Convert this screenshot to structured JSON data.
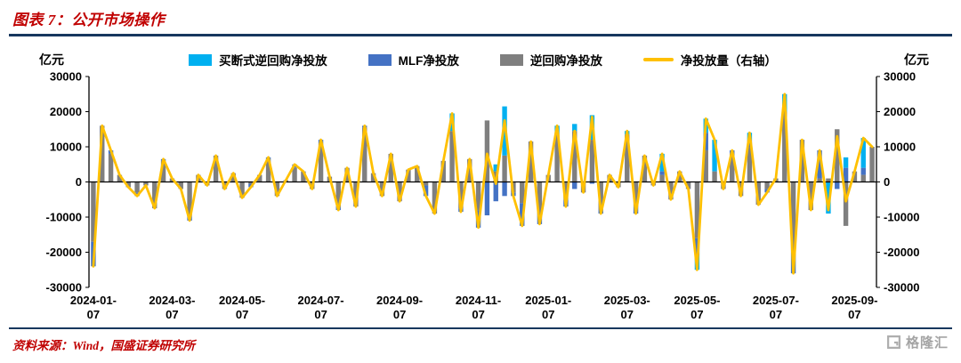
{
  "header": {
    "figure_title": "图表 7：公开市场操作"
  },
  "footer": {
    "source": "资料来源：Wind，国盛证券研究所",
    "watermark": "格隆汇"
  },
  "chart_data": {
    "type": "combo-bar-line",
    "title": "",
    "unit_left": "亿元",
    "unit_right": "亿元",
    "ylim": [
      -30000,
      30000
    ],
    "ylim_right": [
      -30000,
      30000
    ],
    "y_ticks": [
      30000,
      20000,
      10000,
      0,
      -10000,
      -20000,
      -30000
    ],
    "grid": false,
    "legend_position": "top",
    "x_tick_labels": [
      "2024-01-07",
      "2024-03-07",
      "2024-05-07",
      "2024-07-07",
      "2024-09-07",
      "2024-11-07",
      "2025-01-07",
      "2025-03-07",
      "2025-05-07",
      "2025-07-07",
      "2025-09-07"
    ],
    "x_tick_indices": [
      0,
      9,
      17,
      26,
      35,
      44,
      52,
      61,
      69,
      78,
      87
    ],
    "dates": [
      "2024-01-07",
      "2024-01-14",
      "2024-01-21",
      "2024-01-28",
      "2024-02-04",
      "2024-02-11",
      "2024-02-18",
      "2024-02-25",
      "2024-03-03",
      "2024-03-10",
      "2024-03-17",
      "2024-03-24",
      "2024-03-31",
      "2024-04-07",
      "2024-04-14",
      "2024-04-21",
      "2024-04-28",
      "2024-05-05",
      "2024-05-12",
      "2024-05-19",
      "2024-05-26",
      "2024-06-02",
      "2024-06-09",
      "2024-06-16",
      "2024-06-23",
      "2024-06-30",
      "2024-07-07",
      "2024-07-14",
      "2024-07-21",
      "2024-07-28",
      "2024-08-04",
      "2024-08-11",
      "2024-08-18",
      "2024-08-25",
      "2024-09-01",
      "2024-09-08",
      "2024-09-15",
      "2024-09-22",
      "2024-09-29",
      "2024-10-06",
      "2024-10-13",
      "2024-10-20",
      "2024-10-27",
      "2024-11-03",
      "2024-11-10",
      "2024-11-17",
      "2024-11-24",
      "2024-12-01",
      "2024-12-08",
      "2024-12-15",
      "2024-12-22",
      "2024-12-29",
      "2025-01-05",
      "2025-01-12",
      "2025-01-19",
      "2025-01-26",
      "2025-02-02",
      "2025-02-09",
      "2025-02-16",
      "2025-02-23",
      "2025-03-02",
      "2025-03-09",
      "2025-03-16",
      "2025-03-23",
      "2025-03-30",
      "2025-04-06",
      "2025-04-13",
      "2025-04-20",
      "2025-04-27",
      "2025-05-04",
      "2025-05-11",
      "2025-05-18",
      "2025-05-25",
      "2025-06-01",
      "2025-06-08",
      "2025-06-15",
      "2025-06-22",
      "2025-06-29",
      "2025-07-06",
      "2025-07-13",
      "2025-07-20",
      "2025-07-27",
      "2025-08-03",
      "2025-08-10",
      "2025-08-17",
      "2025-08-24",
      "2025-08-31",
      "2025-09-07",
      "2025-09-14",
      "2025-09-21"
    ],
    "series": [
      {
        "name": "买断式逆回购净投放",
        "type": "bar",
        "color": "#00b0f0",
        "values": [
          0,
          0,
          0,
          0,
          0,
          0,
          0,
          0,
          0,
          0,
          0,
          0,
          0,
          0,
          0,
          0,
          0,
          0,
          0,
          0,
          0,
          0,
          0,
          0,
          0,
          0,
          0,
          0,
          0,
          0,
          0,
          0,
          0,
          0,
          0,
          0,
          0,
          0,
          0,
          0,
          0,
          5000,
          0,
          0,
          0,
          0,
          2000,
          14000,
          0,
          0,
          0,
          0,
          0,
          2000,
          0,
          2000,
          0,
          7000,
          0,
          0,
          0,
          1000,
          0,
          0,
          0,
          5000,
          0,
          0,
          0,
          -4000,
          4000,
          9000,
          0,
          0,
          0,
          2000,
          0,
          0,
          0,
          5000,
          0,
          0,
          0,
          0,
          -9000,
          0,
          3000,
          0,
          8500,
          0
        ]
      },
      {
        "name": "MLF净投放",
        "type": "bar",
        "color": "#4472c4",
        "values": [
          -7000,
          0,
          1000,
          0,
          0,
          -1000,
          0,
          0,
          500,
          0,
          0,
          -1500,
          0,
          0,
          0,
          0,
          0,
          0,
          -1000,
          0,
          1000,
          0,
          0,
          1000,
          0,
          0,
          1000,
          0,
          -2000,
          0,
          0,
          500,
          0,
          0,
          0,
          0,
          0,
          0,
          -3000,
          0,
          0,
          0,
          -1000,
          0,
          -5000,
          -9500,
          -5500,
          -4000,
          -1000,
          -6500,
          0,
          -3000,
          0,
          500,
          -2000,
          -2000,
          0,
          -500,
          -1000,
          0,
          0,
          0,
          -2000,
          0,
          0,
          1000,
          0,
          0,
          0,
          -5000,
          5000,
          0,
          0,
          1000,
          0,
          2000,
          0,
          -1000,
          0,
          0,
          -6000,
          0,
          0,
          8000,
          0,
          -2000,
          4000,
          0,
          2000,
          0
        ]
      },
      {
        "name": "逆回购净投放",
        "type": "bar",
        "color": "#7f7f7f",
        "values": [
          -17000,
          16000,
          8000,
          2000,
          -1500,
          -3000,
          -1000,
          -7500,
          6000,
          1000,
          -2000,
          -9500,
          2000,
          -1000,
          7500,
          -2000,
          2500,
          -4500,
          -500,
          2000,
          6000,
          -4000,
          500,
          4000,
          3000,
          -2000,
          11000,
          1500,
          -6000,
          4000,
          -7000,
          15500,
          2500,
          -4000,
          8000,
          -5500,
          3500,
          4500,
          -1000,
          -9000,
          6000,
          14500,
          -7500,
          6500,
          -8000,
          17500,
          3000,
          7500,
          -3000,
          -6000,
          11500,
          -9000,
          2000,
          13500,
          -5000,
          14500,
          -3000,
          12000,
          -8000,
          2000,
          -1500,
          13500,
          -7000,
          7500,
          -1000,
          2000,
          -5000,
          3000,
          -2000,
          -16000,
          9000,
          3000,
          -2000,
          8000,
          -4000,
          10000,
          -6500,
          -2000,
          1000,
          20000,
          -20000,
          12000,
          -8000,
          1000,
          1000,
          15000,
          -12500,
          3000,
          2000,
          10000
        ]
      },
      {
        "name": "净投放量（右轴）",
        "type": "line",
        "axis": "right",
        "color": "#ffc000",
        "values": [
          -24000,
          16000,
          9000,
          2000,
          -1500,
          -4000,
          -1000,
          -7500,
          6500,
          1000,
          -2000,
          -11000,
          2000,
          -1000,
          7500,
          -2000,
          2500,
          -4500,
          -1500,
          2000,
          7000,
          -4000,
          500,
          5000,
          3000,
          -2000,
          12000,
          1500,
          -8000,
          4000,
          -7000,
          16000,
          2500,
          -4000,
          8000,
          -5500,
          3500,
          4500,
          -4000,
          -9000,
          6000,
          19500,
          -8500,
          6500,
          -13000,
          8000,
          -500,
          17500,
          -4000,
          -12500,
          11500,
          -12000,
          2000,
          16000,
          -7000,
          14500,
          -3000,
          18500,
          -9000,
          2000,
          -1500,
          14500,
          -9000,
          7500,
          -1000,
          8000,
          -5000,
          3000,
          -2000,
          -25000,
          18000,
          12000,
          -2000,
          9000,
          -4000,
          14000,
          -6500,
          -3000,
          1000,
          25000,
          -26000,
          12000,
          -8000,
          9000,
          -8000,
          13000,
          -5500,
          3000,
          12500,
          10000
        ]
      }
    ]
  }
}
